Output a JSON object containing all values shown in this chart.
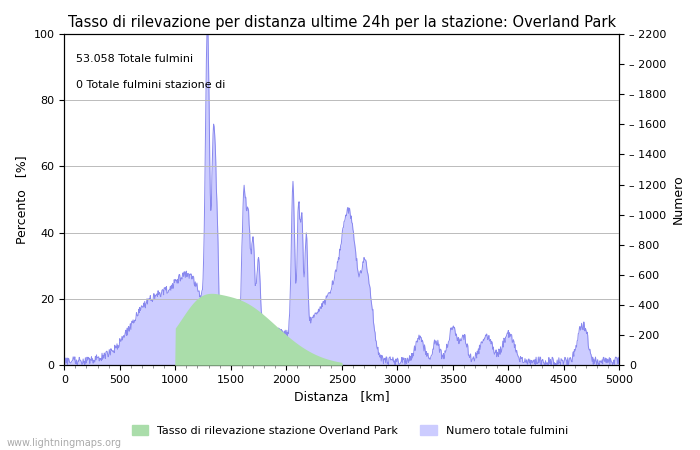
{
  "title": "Tasso di rilevazione per distanza ultime 24h per la stazione: Overland Park",
  "xlabel": "Distanza   [km]",
  "ylabel_left": "Percento   [%]",
  "ylabel_right": "Numero",
  "annotation_line1": "53.058 Totale fulmini",
  "annotation_line2": "0 Totale fulmini stazione di",
  "xlim": [
    0,
    5000
  ],
  "ylim_left": [
    0,
    100
  ],
  "ylim_right": [
    0,
    2200
  ],
  "xticks": [
    0,
    500,
    1000,
    1500,
    2000,
    2500,
    3000,
    3500,
    4000,
    4500,
    5000
  ],
  "yticks_left": [
    0,
    20,
    40,
    60,
    80,
    100
  ],
  "yticks_right": [
    0,
    200,
    400,
    600,
    800,
    1000,
    1200,
    1400,
    1600,
    1800,
    2000,
    2200
  ],
  "legend_label_green": "Tasso di rilevazione stazione Overland Park",
  "legend_label_blue": "Numero totale fulmini",
  "fill_color_blue": "#ccccff",
  "fill_color_green": "#aaddaa",
  "line_color": "#8888ee",
  "watermark": "www.lightningmaps.org",
  "background_color": "#ffffff",
  "grid_color": "#bbbbbb",
  "title_fontsize": 10.5,
  "axis_fontsize": 9,
  "tick_fontsize": 8
}
